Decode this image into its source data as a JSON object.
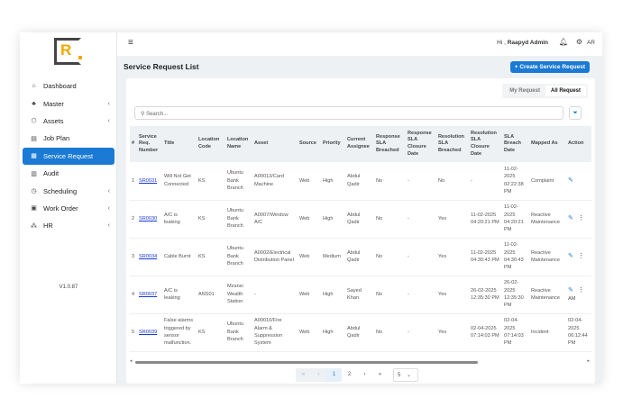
{
  "app": {
    "logo_text": "R",
    "version": "V1.0.87"
  },
  "sidebar": {
    "items": [
      {
        "label": "Dashboard",
        "icon": "home-icon",
        "glyph": "⌂",
        "chev": false
      },
      {
        "label": "Master",
        "icon": "sitemap-icon",
        "glyph": "♣",
        "chev": true
      },
      {
        "label": "Assets",
        "icon": "cube-icon",
        "glyph": "⬡",
        "chev": true
      },
      {
        "label": "Job Plan",
        "icon": "clipboard-icon",
        "glyph": "▤",
        "chev": false
      },
      {
        "label": "Service Request",
        "icon": "document-icon",
        "glyph": "▦",
        "chev": false,
        "active": true
      },
      {
        "label": "Audit",
        "icon": "list-icon",
        "glyph": "▥",
        "chev": false
      },
      {
        "label": "Scheduling",
        "icon": "calendar-icon",
        "glyph": "◷",
        "chev": true
      },
      {
        "label": "Work Order",
        "icon": "briefcase-icon",
        "glyph": "▣",
        "chev": true
      },
      {
        "label": "HR",
        "icon": "users-icon",
        "glyph": "⁂",
        "chev": true
      }
    ]
  },
  "header": {
    "greeting": "Hi ,",
    "user": "Raapyd Admin",
    "initials": "AR"
  },
  "page": {
    "title": "Service Request List",
    "create_label": "+ Create Service Request",
    "tabs": [
      "My Request",
      "All Request"
    ],
    "active_tab": "All Request",
    "search_placeholder": "Search..."
  },
  "table": {
    "columns": [
      "#",
      "Service Req. Number",
      "Title",
      "Location Code",
      "Location Name",
      "Asset",
      "Source",
      "Priority",
      "Current Assignee",
      "Response SLA Breached",
      "Response SLA Closure Date",
      "Resolution SLA Breached",
      "Resolution SLA Closure Date",
      "SLA Breach Date",
      "Mapped As",
      "Action"
    ],
    "rows": [
      [
        "1",
        "SR0031",
        "Will Not Get Connected",
        "KS",
        "Ubuntu Bank Branch",
        "A00013/Card Machine",
        "Web",
        "High",
        "Abdul Qadir",
        "No",
        "-",
        "No",
        "-",
        "11-02-2025 02:22:38 PM",
        "Complaint",
        ""
      ],
      [
        "2",
        "SR0030",
        "A/C is leaking",
        "KS",
        "Ubuntu Bank Branch",
        "A0007/Window A/C",
        "Web",
        "High",
        "Abdul Qadir",
        "No",
        "-",
        "Yes",
        "11-02-2025 04:20:21 PM",
        "11-02-2025 04:20:21 PM",
        "Reactive Maintenance",
        ""
      ],
      [
        "3",
        "SR0034",
        "Cable Burnt",
        "KS",
        "Ubuntu Bank Branch",
        "A0002/Electrical Distribution Panel",
        "Web",
        "Medium",
        "Abdul Qadir",
        "No",
        "-",
        "Yes",
        "11-02-2025 04:30:43 PM",
        "11-02-2025 04:30:43 PM",
        "Reactive Maintenance",
        ""
      ],
      [
        "4",
        "SR0037",
        "A/C is leaking",
        "ANS01",
        "Mzansi Wealth Station",
        "-",
        "Web",
        "High",
        "Sayed Khan",
        "No",
        "-",
        "Yes",
        "26-02-2025 12:35:30 PM",
        "26-02-2025 12:35:30 PM",
        "Reactive Maintenance",
        "AM"
      ],
      [
        "5",
        "SR0039",
        "False alarms triggered by sensor malfunction.",
        "KS",
        "Ubuntu Bank Branch",
        "A00010/Fire Alarm & Suppression System",
        "Web",
        "High",
        "Abdul Qadir",
        "No",
        "-",
        "Yes",
        "02-04-2025 07:14:03 PM",
        "02-04-2025 07:14:03 PM",
        "Incident",
        "02-04-2025 06:12:44 PM"
      ]
    ],
    "row_actions": [
      [
        "edit"
      ],
      [
        "edit",
        "more"
      ],
      [
        "edit",
        "more"
      ],
      [
        "edit",
        "more"
      ],
      []
    ]
  },
  "pagination": {
    "pages": [
      "1",
      "2"
    ],
    "current": "1",
    "page_size": "5"
  },
  "colors": {
    "accent": "#1a7ad4",
    "logo": "#f0a800"
  }
}
